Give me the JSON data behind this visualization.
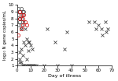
{
  "title": "",
  "xlabel": "Day of illness",
  "ylabel": "log₁₀ N gene copies/mL",
  "xlim": [
    0,
    70
  ],
  "ylim": [
    1,
    10
  ],
  "yticks": [
    1,
    2,
    3,
    4,
    5,
    6,
    7,
    8,
    9,
    10
  ],
  "xticks": [
    0,
    10,
    20,
    30,
    40,
    50,
    60,
    70
  ],
  "black_x_points": [
    [
      3,
      6.5
    ],
    [
      5,
      7.5
    ],
    [
      6,
      6.5
    ],
    [
      7,
      5.0
    ],
    [
      8,
      4.5
    ],
    [
      9,
      4.5
    ],
    [
      10,
      4.0
    ],
    [
      11,
      3.5
    ],
    [
      13,
      1.0
    ],
    [
      14,
      1.0
    ],
    [
      2,
      1.5
    ],
    [
      3,
      1.5
    ],
    [
      4,
      1.0
    ],
    [
      5,
      1.0
    ],
    [
      6,
      1.0
    ],
    [
      7,
      1.0
    ],
    [
      8,
      1.0
    ],
    [
      9,
      1.0
    ],
    [
      10,
      1.0
    ],
    [
      11,
      1.0
    ],
    [
      12,
      1.0
    ],
    [
      2,
      3.0
    ],
    [
      3,
      3.5
    ],
    [
      5,
      4.5
    ],
    [
      6,
      4.0
    ],
    [
      8,
      3.2
    ],
    [
      2,
      2.0
    ],
    [
      4,
      2.5
    ],
    [
      7,
      2.0
    ],
    [
      20,
      1.0
    ],
    [
      22,
      6.5
    ],
    [
      28,
      4.5
    ],
    [
      30,
      1.0
    ],
    [
      35,
      3.5
    ],
    [
      37,
      6.0
    ],
    [
      40,
      1.0
    ],
    [
      53,
      7.5
    ],
    [
      57,
      7.5
    ],
    [
      58,
      6.5
    ],
    [
      60,
      7.0
    ],
    [
      62,
      6.5
    ],
    [
      63,
      5.5
    ],
    [
      65,
      7.5
    ],
    [
      66,
      6.0
    ],
    [
      67,
      6.5
    ]
  ],
  "red_circle_points": [
    [
      2,
      8.0
    ],
    [
      3,
      8.5
    ],
    [
      4,
      8.0
    ],
    [
      5,
      8.5
    ],
    [
      6,
      7.5
    ],
    [
      3,
      6.5
    ],
    [
      7,
      7.0
    ],
    [
      2,
      9.0
    ],
    [
      1,
      5.5
    ],
    [
      4,
      7.0
    ]
  ],
  "black_circle_points": [
    [
      1,
      9.5
    ],
    [
      2,
      9.0
    ],
    [
      3,
      9.5
    ],
    [
      4,
      9.0
    ],
    [
      5,
      9.0
    ],
    [
      1,
      8.5
    ],
    [
      2,
      8.0
    ],
    [
      3,
      8.0
    ],
    [
      4,
      8.5
    ],
    [
      1,
      7.0
    ],
    [
      2,
      7.5
    ],
    [
      3,
      7.0
    ]
  ],
  "marker_size_x": 2.5,
  "marker_size_circle": 3.0,
  "lw_circle": 0.5,
  "lw_x": 0.6,
  "bg_color": "#ffffff",
  "black_color": "#444444",
  "red_color": "#cc0000",
  "axis_lw": 0.5,
  "tick_labelsize": 4,
  "xlabel_fontsize": 4.5,
  "ylabel_fontsize": 4.0
}
